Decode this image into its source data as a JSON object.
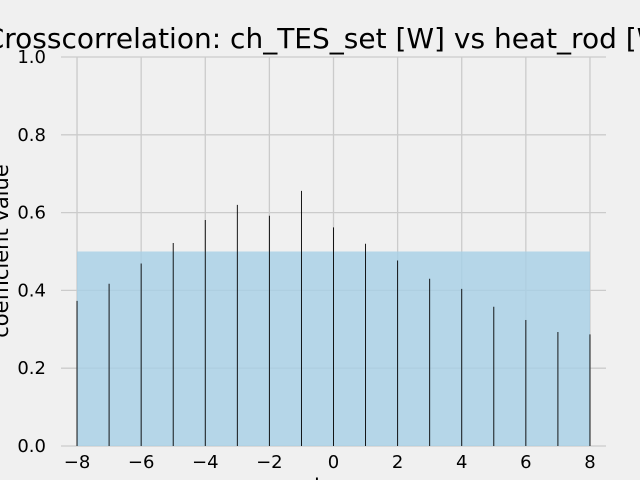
{
  "chart_data": {
    "type": "bar",
    "title": "Crosscorrelation: ch_TES_set [W] vs heat_rod [W]",
    "xlabel": "lag",
    "ylabel": "coefficient value",
    "x": [
      -8,
      -7,
      -6,
      -5,
      -4,
      -3,
      -2,
      -1,
      0,
      1,
      2,
      3,
      4,
      5,
      6,
      7,
      8
    ],
    "values": [
      0.373,
      0.417,
      0.469,
      0.522,
      0.581,
      0.62,
      0.592,
      0.656,
      0.562,
      0.52,
      0.477,
      0.43,
      0.404,
      0.358,
      0.324,
      0.293,
      0.287
    ],
    "xlim": [
      -8.5,
      8.5
    ],
    "ylim": [
      0,
      1.0
    ],
    "xticks": [
      -8,
      -6,
      -4,
      -2,
      0,
      2,
      4,
      6,
      8
    ],
    "xtick_labels": [
      "−8",
      "−6",
      "−4",
      "−2",
      "0",
      "2",
      "4",
      "6",
      "8"
    ],
    "yticks": [
      0.0,
      0.2,
      0.4,
      0.6,
      0.8,
      1.0
    ],
    "ytick_labels": [
      "0.0",
      "0.2",
      "0.4",
      "0.6",
      "0.8",
      "1.0"
    ],
    "confidence_band": {
      "x": [
        -8,
        8
      ],
      "y": [
        0,
        0.5
      ]
    },
    "grid": true,
    "colors": {
      "background": "#f0f0f0",
      "grid": "#cbcbcb",
      "bar": "#000000",
      "band": "#a6cfe6"
    }
  }
}
